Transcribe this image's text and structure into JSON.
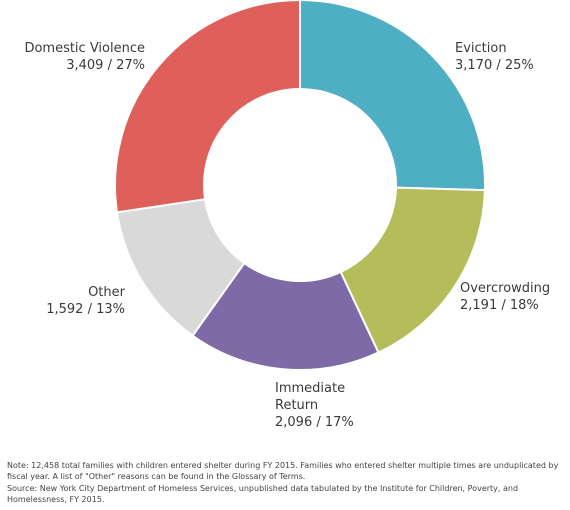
{
  "chart_data": {
    "type": "pie",
    "donut": true,
    "categories": [
      "Eviction",
      "Overcrowding",
      "Immediate Return",
      "Other",
      "Domestic Violence"
    ],
    "values": [
      3170,
      2191,
      2096,
      1592,
      3409
    ],
    "percents": [
      "25%",
      "18%",
      "17%",
      "13%",
      "27%"
    ],
    "labels": [
      {
        "lines": [
          "Eviction",
          "3,170 / 25%"
        ],
        "anchor": "start"
      },
      {
        "lines": [
          "Overcrowding",
          "2,191 / 18%"
        ],
        "anchor": "start"
      },
      {
        "lines": [
          "Immediate",
          "Return",
          "2,096 / 17%"
        ],
        "anchor": "start"
      },
      {
        "lines": [
          "Other",
          "1,592 / 13%"
        ],
        "anchor": "end"
      },
      {
        "lines": [
          "Domestic Violence",
          "3,409 / 27%"
        ],
        "anchor": "end"
      }
    ],
    "colors": [
      "#4daec4",
      "#b4bd5a",
      "#7d6aa6",
      "#d9d9d9",
      "#df605b"
    ],
    "start": "12 o'clock, clockwise"
  },
  "footnotes": {
    "note": "Note: 12,458 total families with children entered shelter during FY 2015. Families who entered shelter multiple times are unduplicated by fiscal year. A list of \"Other\" reasons can be found in the Glossary of Terms.",
    "source": "Source: New York City Department of Homeless Services, unpublished data tabulated by the Institute for Children, Poverty, and Homelessness, FY 2015."
  }
}
